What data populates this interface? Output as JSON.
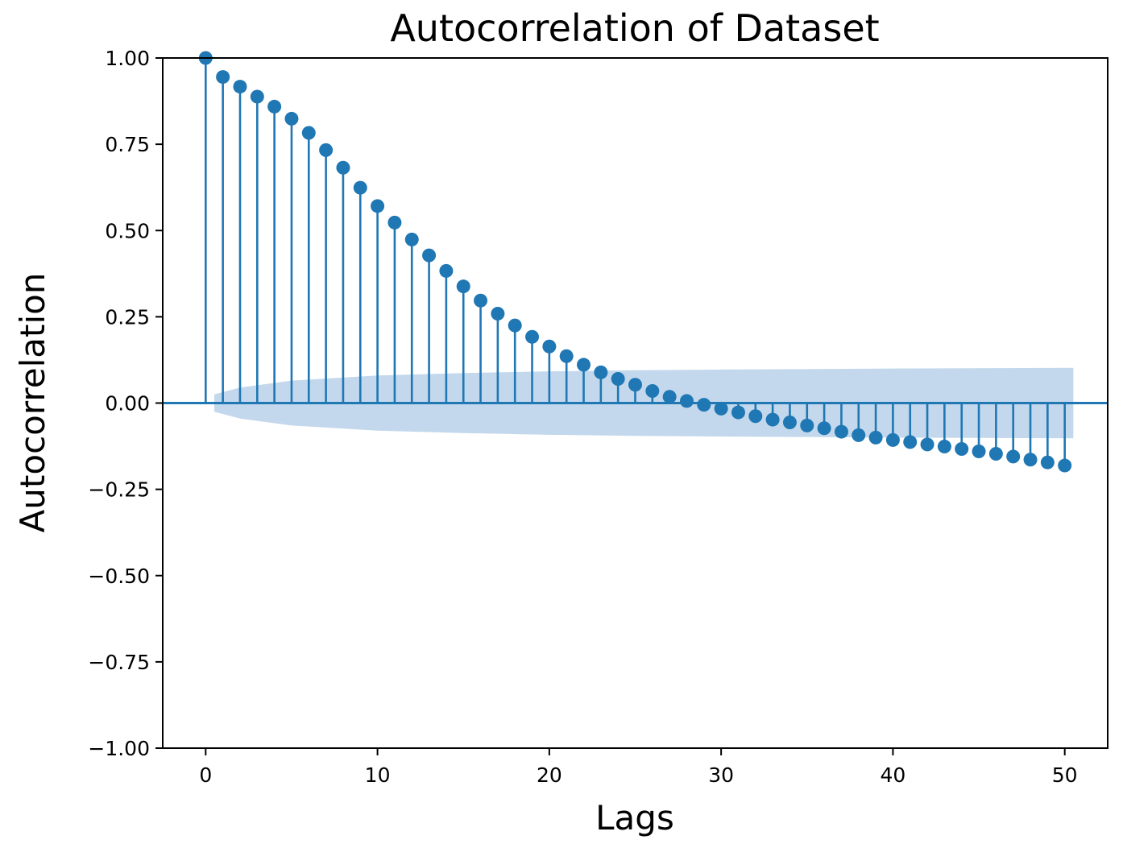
{
  "chart_data": {
    "type": "stem",
    "title": "Autocorrelation of Dataset",
    "xlabel": "Lags",
    "ylabel": "Autocorrelation",
    "xlim": [
      -2.5,
      52.5
    ],
    "ylim": [
      -1.0,
      1.0
    ],
    "x_ticks": [
      0,
      10,
      20,
      30,
      40,
      50
    ],
    "x_tick_labels": [
      "0",
      "10",
      "20",
      "30",
      "40",
      "50"
    ],
    "y_ticks": [
      -1.0,
      -0.75,
      -0.5,
      -0.25,
      0.0,
      0.25,
      0.5,
      0.75,
      1.0
    ],
    "y_tick_labels": [
      "−1.00",
      "−0.75",
      "−0.50",
      "−0.25",
      "0.00",
      "0.25",
      "0.50",
      "0.75",
      "1.00"
    ],
    "grid": false,
    "colors": {
      "stem": "#1f77b4",
      "confidence_band": "#c3d8ec"
    },
    "series": [
      {
        "x": [
          0,
          1,
          2,
          3,
          4,
          5,
          6,
          7,
          8,
          9,
          10,
          11,
          12,
          13,
          14,
          15,
          16,
          17,
          18,
          19,
          20,
          21,
          22,
          23,
          24,
          25,
          26,
          27,
          28,
          29,
          30,
          31,
          32,
          33,
          34,
          35,
          36,
          37,
          38,
          39,
          40,
          41,
          42,
          43,
          44,
          45,
          46,
          47,
          48,
          49,
          50
        ],
        "values": [
          1.0,
          0.945,
          0.917,
          0.888,
          0.859,
          0.824,
          0.783,
          0.733,
          0.682,
          0.624,
          0.571,
          0.523,
          0.474,
          0.428,
          0.383,
          0.338,
          0.297,
          0.259,
          0.225,
          0.192,
          0.164,
          0.136,
          0.111,
          0.089,
          0.07,
          0.053,
          0.035,
          0.018,
          0.006,
          -0.005,
          -0.016,
          -0.027,
          -0.038,
          -0.048,
          -0.056,
          -0.065,
          -0.073,
          -0.083,
          -0.093,
          -0.1,
          -0.107,
          -0.113,
          -0.12,
          -0.126,
          -0.133,
          -0.14,
          -0.147,
          -0.155,
          -0.164,
          -0.172,
          -0.181
        ]
      }
    ],
    "confidence_band": {
      "x": [
        0.5,
        2,
        5,
        10,
        15,
        20,
        25,
        30,
        40,
        50.5
      ],
      "upper": [
        0.025,
        0.045,
        0.065,
        0.08,
        0.087,
        0.092,
        0.095,
        0.097,
        0.1,
        0.102
      ],
      "lower": [
        -0.025,
        -0.045,
        -0.065,
        -0.08,
        -0.087,
        -0.092,
        -0.095,
        -0.097,
        -0.1,
        -0.102
      ]
    }
  }
}
